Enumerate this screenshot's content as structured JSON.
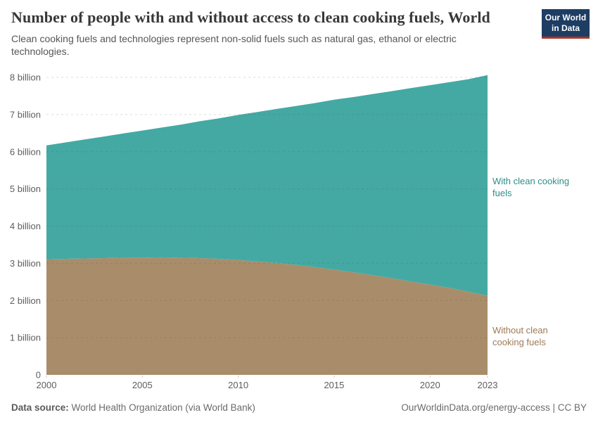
{
  "header": {
    "title": "Number of people with and without access to clean cooking fuels, World",
    "subtitle": "Clean cooking fuels and technologies represent non-solid fuels such as natural gas, ethanol or electric technologies.",
    "logo": {
      "line1": "Our World",
      "line2": "in Data",
      "bg_color": "#1d3d63",
      "accent_color": "#b13325"
    }
  },
  "footer": {
    "datasource_label": "Data source:",
    "datasource_value": " World Health Organization (via World Bank)",
    "link": "OurWorldinData.org/energy-access | CC BY"
  },
  "chart_data": {
    "type": "area",
    "stacked": true,
    "title": "Number of people with and without access to clean cooking fuels, World",
    "xlabel": "",
    "ylabel": "",
    "grid": "dashed-horizontal",
    "legend_position": "right-of-plot",
    "x": [
      2000,
      2001,
      2002,
      2003,
      2004,
      2005,
      2006,
      2007,
      2008,
      2009,
      2010,
      2011,
      2012,
      2013,
      2014,
      2015,
      2016,
      2017,
      2018,
      2019,
      2020,
      2021,
      2022,
      2023
    ],
    "series": [
      {
        "id": "without",
        "name": "Without clean cooking fuels",
        "color": "#a98d6b",
        "label_color": "#9c7b55",
        "unit": "billion people",
        "values": [
          3.11,
          3.12,
          3.13,
          3.14,
          3.15,
          3.15,
          3.16,
          3.15,
          3.14,
          3.12,
          3.09,
          3.05,
          3.01,
          2.96,
          2.9,
          2.83,
          2.76,
          2.68,
          2.6,
          2.51,
          2.43,
          2.34,
          2.24,
          2.13
        ]
      },
      {
        "id": "with",
        "name": "With clean cooking fuels",
        "color": "#44a9a3",
        "label_color": "#2e8e88",
        "unit": "billion people",
        "values": [
          3.06,
          3.13,
          3.2,
          3.27,
          3.34,
          3.42,
          3.49,
          3.58,
          3.68,
          3.78,
          3.9,
          4.02,
          4.14,
          4.27,
          4.41,
          4.57,
          4.71,
          4.87,
          5.03,
          5.2,
          5.36,
          5.53,
          5.71,
          5.93
        ]
      }
    ],
    "xticks": [
      2000,
      2005,
      2010,
      2015,
      2020,
      2023
    ],
    "yticks": [
      {
        "value": 0,
        "label": "0"
      },
      {
        "value": 1,
        "label": "1 billion"
      },
      {
        "value": 2,
        "label": "2 billion"
      },
      {
        "value": 3,
        "label": "3 billion"
      },
      {
        "value": 4,
        "label": "4 billion"
      },
      {
        "value": 5,
        "label": "5 billion"
      },
      {
        "value": 6,
        "label": "6 billion"
      },
      {
        "value": 7,
        "label": "7 billion"
      },
      {
        "value": 8,
        "label": "8 billion"
      }
    ],
    "xlim": [
      2000,
      2023
    ],
    "ylim": [
      0,
      8.4
    ]
  }
}
